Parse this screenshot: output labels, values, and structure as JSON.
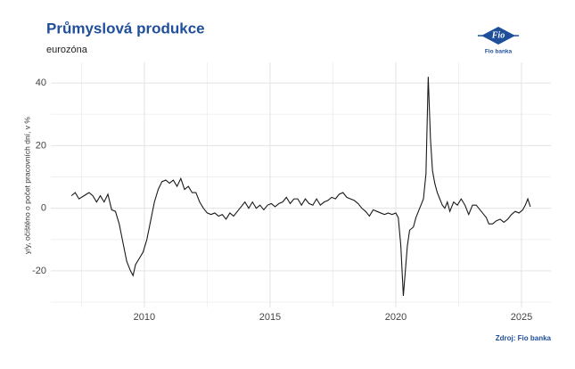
{
  "chart_data": {
    "type": "line",
    "title": "Průmyslová produkce",
    "subtitle": "eurozóna",
    "y_label": "y/y, očištěno o počet pracovních dní, v %",
    "source": "Zdroj: Fio banka",
    "logo": {
      "text": "Fio",
      "caption": "Fio banka"
    },
    "x": [
      2007.1,
      2007.25,
      2007.4,
      2007.6,
      2007.8,
      2007.95,
      2008.1,
      2008.25,
      2008.4,
      2008.55,
      2008.7,
      2008.85,
      2009.0,
      2009.15,
      2009.3,
      2009.45,
      2009.55,
      2009.65,
      2009.8,
      2009.95,
      2010.1,
      2010.25,
      2010.4,
      2010.55,
      2010.7,
      2010.85,
      2011.0,
      2011.15,
      2011.3,
      2011.45,
      2011.6,
      2011.75,
      2011.9,
      2012.05,
      2012.2,
      2012.35,
      2012.5,
      2012.65,
      2012.8,
      2012.95,
      2013.1,
      2013.25,
      2013.4,
      2013.55,
      2013.7,
      2013.85,
      2014.0,
      2014.15,
      2014.3,
      2014.45,
      2014.6,
      2014.75,
      2014.9,
      2015.05,
      2015.2,
      2015.35,
      2015.5,
      2015.65,
      2015.8,
      2015.95,
      2016.1,
      2016.25,
      2016.4,
      2016.55,
      2016.7,
      2016.85,
      2017.0,
      2017.15,
      2017.3,
      2017.45,
      2017.6,
      2017.75,
      2017.9,
      2018.05,
      2018.2,
      2018.35,
      2018.5,
      2018.65,
      2018.8,
      2018.95,
      2019.1,
      2019.25,
      2019.4,
      2019.55,
      2019.7,
      2019.85,
      2020.0,
      2020.1,
      2020.2,
      2020.3,
      2020.38,
      2020.46,
      2020.55,
      2020.7,
      2020.8,
      2020.9,
      2021.0,
      2021.1,
      2021.2,
      2021.29,
      2021.38,
      2021.46,
      2021.55,
      2021.65,
      2021.75,
      2021.85,
      2021.95,
      2022.05,
      2022.15,
      2022.3,
      2022.45,
      2022.6,
      2022.75,
      2022.9,
      2023.05,
      2023.2,
      2023.35,
      2023.5,
      2023.6,
      2023.7,
      2023.85,
      2024.0,
      2024.15,
      2024.3,
      2024.45,
      2024.6,
      2024.75,
      2024.9,
      2025.05,
      2025.15,
      2025.25,
      2025.35
    ],
    "series": [
      {
        "name": "Průmyslová produkce",
        "color": "#1a1a1a",
        "values": [
          4,
          5,
          3,
          4,
          5,
          4,
          2,
          4,
          2,
          4.5,
          -0.5,
          -1,
          -5,
          -11,
          -17,
          -20,
          -21.5,
          -18,
          -16,
          -14,
          -10,
          -4,
          2,
          6,
          8.5,
          9,
          8,
          9,
          7,
          9.5,
          6,
          7,
          5,
          5,
          2,
          0,
          -1.5,
          -2,
          -1.5,
          -2.5,
          -2,
          -3.5,
          -1.5,
          -2.5,
          -1,
          0.5,
          2,
          0,
          2,
          0,
          1,
          -0.5,
          1,
          1.5,
          0.5,
          1.5,
          2,
          3.5,
          1.5,
          3,
          3,
          1,
          3,
          1.5,
          1,
          3,
          1,
          2,
          2.5,
          3.5,
          3,
          4.5,
          5,
          3.5,
          3,
          2.5,
          1.5,
          0,
          -1,
          -2.5,
          -0.5,
          -1,
          -1.5,
          -2,
          -1.5,
          -2,
          -1.5,
          -3,
          -12,
          -28,
          -20,
          -12,
          -7,
          -6,
          -3,
          -1,
          1,
          3,
          11,
          42,
          22,
          12,
          8,
          5,
          3,
          1,
          0,
          2,
          -1,
          2,
          1,
          3,
          1,
          -2,
          1,
          1,
          -0.5,
          -2,
          -3,
          -5,
          -5,
          -4,
          -3.5,
          -4.5,
          -3.5,
          -2,
          -1,
          -1.5,
          -0.5,
          1,
          3,
          0.5
        ]
      }
    ],
    "xlim": [
      2006.28,
      2026.17
    ],
    "xticks": [
      2010,
      2015,
      2020,
      2025
    ],
    "minor_xticks": [
      2007.5,
      2012.5,
      2017.5,
      2022.5
    ],
    "ylim": [
      -31.7,
      46.6
    ],
    "yticks": [
      -20,
      0,
      20,
      40
    ],
    "minor_yticks": [
      -30,
      -10,
      10,
      30
    ],
    "grid": true
  }
}
